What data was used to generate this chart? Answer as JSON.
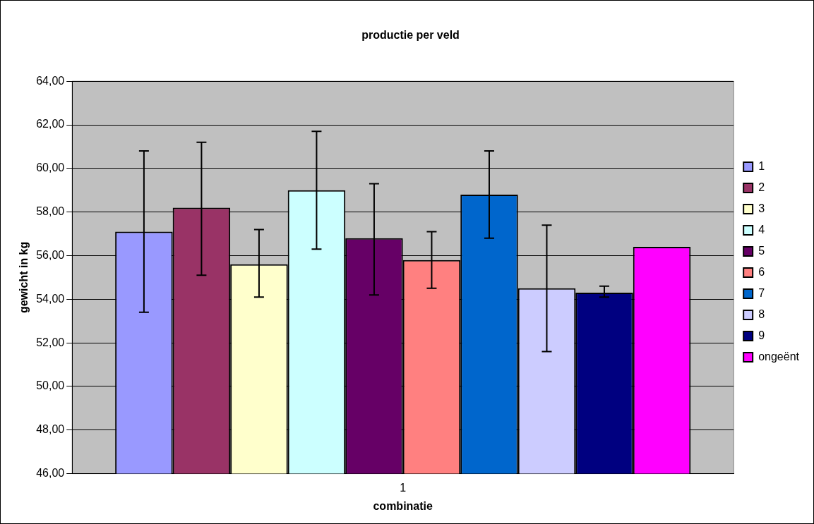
{
  "chart_data": {
    "type": "bar",
    "title": "productie per veld",
    "xlabel": "combinatie",
    "ylabel": "gewicht in kg",
    "categories": [
      "1"
    ],
    "series": [
      {
        "name": "1",
        "color": "#9999ff",
        "values": [
          57.1
        ],
        "errors": [
          [
            53.4,
            60.8
          ]
        ]
      },
      {
        "name": "2",
        "color": "#993366",
        "values": [
          58.2
        ],
        "errors": [
          [
            55.1,
            61.2
          ]
        ]
      },
      {
        "name": "3",
        "color": "#ffffcc",
        "values": [
          55.6
        ],
        "errors": [
          [
            54.1,
            57.2
          ]
        ]
      },
      {
        "name": "4",
        "color": "#ccffff",
        "values": [
          59.0
        ],
        "errors": [
          [
            56.3,
            61.7
          ]
        ]
      },
      {
        "name": "5",
        "color": "#660066",
        "values": [
          56.8
        ],
        "errors": [
          [
            54.2,
            59.3
          ]
        ]
      },
      {
        "name": "6",
        "color": "#ff8080",
        "values": [
          55.8
        ],
        "errors": [
          [
            54.5,
            57.1
          ]
        ]
      },
      {
        "name": "7",
        "color": "#0066cc",
        "values": [
          58.8
        ],
        "errors": [
          [
            56.8,
            60.8
          ]
        ]
      },
      {
        "name": "8",
        "color": "#ccccff",
        "values": [
          54.5
        ],
        "errors": [
          [
            51.6,
            57.4
          ]
        ]
      },
      {
        "name": "9",
        "color": "#000080",
        "values": [
          54.3
        ],
        "errors": [
          [
            54.1,
            54.6
          ]
        ]
      },
      {
        "name": "ongeënt",
        "color": "#ff00ff",
        "values": [
          56.4
        ]
      }
    ],
    "ylim": [
      46,
      64
    ],
    "yticks": [
      {
        "value": 46,
        "label": "46,00"
      },
      {
        "value": 48,
        "label": "48,00"
      },
      {
        "value": 50,
        "label": "50,00"
      },
      {
        "value": 52,
        "label": "52,00"
      },
      {
        "value": 54,
        "label": "54,00"
      },
      {
        "value": 56,
        "label": "56,00"
      },
      {
        "value": 58,
        "label": "58,00"
      },
      {
        "value": 60,
        "label": "60,00"
      },
      {
        "value": 62,
        "label": "62,00"
      },
      {
        "value": 64,
        "label": "64,00"
      }
    ],
    "grid": "y",
    "legend": "right"
  }
}
